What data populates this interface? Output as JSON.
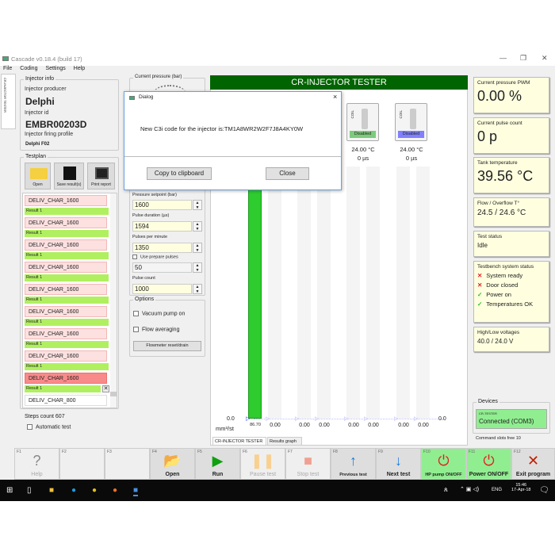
{
  "window": {
    "title": "Cascade v0.18.4 (build 17)",
    "min": "—",
    "max": "❐",
    "close": "✕"
  },
  "menu": [
    "File",
    "Coding",
    "Settings",
    "Help"
  ],
  "vertical_tab": "CR-INJECTOR TESTER",
  "injector_info": {
    "group": "Injector info",
    "producer_label": "Injector producer",
    "producer": "Delphi",
    "id_label": "Injector id",
    "id": "EMBR00203D",
    "profile_label": "Injector firing profile",
    "profile": "Delphi F02"
  },
  "testplan": {
    "group": "Testplan",
    "buttons": [
      "Open",
      "Save result(s)",
      "Print report"
    ],
    "items": [
      {
        "name": "DELIV_CHAR_1600",
        "result": "Result 1"
      },
      {
        "name": "DELIV_CHAR_1600",
        "result": "Result 1"
      },
      {
        "name": "DELIV_CHAR_1600",
        "result": "Result 1"
      },
      {
        "name": "DELIV_CHAR_1600",
        "result": "Result 1"
      },
      {
        "name": "DELIV_CHAR_1600",
        "result": "Result 1"
      },
      {
        "name": "DELIV_CHAR_1600",
        "result": "Result 1"
      },
      {
        "name": "DELIV_CHAR_1600",
        "result": "Result 1"
      },
      {
        "name": "DELIV_CHAR_1600",
        "result": "Result 1"
      },
      {
        "name": "DELIV_CHAR_1600",
        "result": "Result 1",
        "selected": true
      },
      {
        "name": "DELIV_CHAR_800"
      }
    ],
    "steps_count": "Steps count 607",
    "automatic_test": "Automatic test"
  },
  "controls": {
    "current_pressure": "Current pressure (bar)",
    "pressure_setpoint_label": "Pressure setpoint (bar)",
    "pressure_setpoint": "1600",
    "pulse_duration_label": "Pulse duration (µs)",
    "pulse_duration": "1594",
    "ppm_label": "Pulses per minute",
    "ppm": "1350",
    "prepare_label": "Use prepare pulses",
    "prepare": "50",
    "pulse_count_label": "Pulse count",
    "pulse_count": "1000"
  },
  "options": {
    "group": "Options",
    "vacuum": "Vacuum pump on",
    "averaging": "Flow averaging",
    "flowmeter": "Flowmeter reset/drain"
  },
  "main": {
    "header": "CR-INJECTOR TESTER",
    "header_color": "#006400",
    "injectors": [
      {
        "coil": "COIL",
        "status": "Disabled",
        "color": "#7ccb7c",
        "temp": "24.00 °C",
        "pulse": "0 µs"
      },
      {
        "coil": "COIL",
        "status": "Disabled",
        "color": "#8080ff",
        "temp": "24.00 °C",
        "pulse": "0 µs"
      }
    ],
    "axis_left": "0.0",
    "axis_right": "0.0",
    "unit": "mm³/st",
    "bars": [
      {
        "value": "86.70",
        "fill": 0.92
      },
      {
        "value": "0.00"
      },
      {
        "value": "0.00"
      },
      {
        "value": "0.00"
      },
      {
        "value": "0.00"
      },
      {
        "value": "0.00"
      },
      {
        "value": "0.00"
      },
      {
        "value": "0.00"
      }
    ],
    "tabs": [
      "CR-INJECTOR TESTER",
      "Results graph"
    ]
  },
  "dialog": {
    "title": "Dialog",
    "message": "New C3i code for the injector is:TM1A8WR2W2F7J8A4KY0W",
    "copy": "Copy to clipboard",
    "close": "Close"
  },
  "status": {
    "pwm_label": "Current pressure PWM",
    "pwm": "0.00 %",
    "pulse_label": "Current pulse count",
    "pulse": "0 p",
    "tank_label": "Tank temperature",
    "tank": "39.56 °C",
    "flow_label": "Flow / Overflow T°",
    "flow": "24.5 / 24.6 °C",
    "test_label": "Test status",
    "test": "Idle",
    "system_label": "Testbench system status",
    "system": [
      {
        "ok": false,
        "text": "System ready"
      },
      {
        "ok": false,
        "text": "Door closed"
      },
      {
        "ok": true,
        "text": "Power on"
      },
      {
        "ok": true,
        "text": "Temperatures OK"
      }
    ],
    "volt_label": "High/Low voltages",
    "volt": "40.0 / 24.0 V"
  },
  "devices": {
    "group": "Devices",
    "device": "CR-TESTER",
    "state": "Connected (COM3)",
    "slots": "Command slots free 10"
  },
  "fkeys": [
    {
      "key": "F1",
      "label": "Help",
      "icon": "?",
      "color": "#888",
      "enabled": false
    },
    {
      "key": "F2",
      "label": ""
    },
    {
      "key": "F3",
      "label": ""
    },
    {
      "key": "F4",
      "label": "Open",
      "icon": "📂",
      "color": "#f0c040"
    },
    {
      "key": "F5",
      "label": "Run",
      "icon": "▶",
      "color": "#10a010"
    },
    {
      "key": "F6",
      "label": "Pause test",
      "icon": "❚❚",
      "color": "#f8d090",
      "enabled": false
    },
    {
      "key": "F7",
      "label": "Stop test",
      "icon": "■",
      "color": "#f0a090",
      "enabled": false
    },
    {
      "key": "F8",
      "label": "Previous test",
      "icon": "↑",
      "color": "#1a7ae0"
    },
    {
      "key": "F9",
      "label": "Next test",
      "icon": "↓",
      "color": "#1a7ae0"
    },
    {
      "key": "F10",
      "label": "HP pump ON/OFF",
      "icon": "⏻",
      "color": "#e02020",
      "bg": "#90ee90"
    },
    {
      "key": "F11",
      "label": "Power ON/OFF",
      "icon": "⏻",
      "color": "#e02020",
      "bg": "#90ee90"
    },
    {
      "key": "F12",
      "label": "Exit program",
      "icon": "✕",
      "color": "#c02000"
    }
  ],
  "taskbar": {
    "time": "15:46",
    "date": "17-Apr-18",
    "lang": "ENG"
  }
}
